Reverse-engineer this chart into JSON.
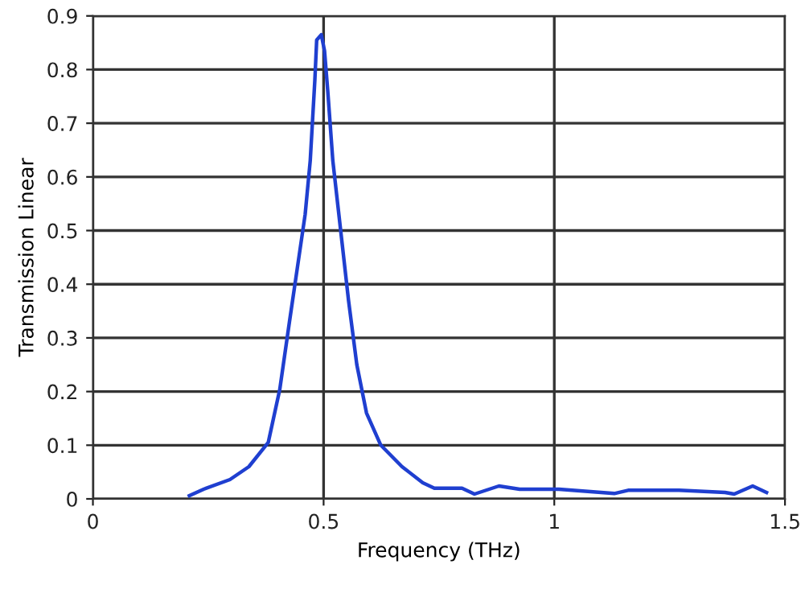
{
  "chart_data": {
    "type": "line",
    "xlabel": "Frequency (THz)",
    "ylabel": "Transmission Linear",
    "xlim": [
      0,
      1.5
    ],
    "xticks": [
      0,
      0.5,
      1,
      1.5
    ],
    "ylim": [
      0,
      0.9
    ],
    "yticks": [
      0,
      0.1,
      0.2,
      0.3,
      0.4,
      0.5,
      0.6,
      0.7,
      0.8,
      0.9
    ],
    "grid": true,
    "line_style": "solid",
    "marker": "none",
    "series": [
      {
        "color": "#1f3fd0",
        "x": [
          0.209,
          0.24,
          0.297,
          0.338,
          0.38,
          0.405,
          0.426,
          0.443,
          0.46,
          0.471,
          0.481,
          0.485,
          0.495,
          0.502,
          0.509,
          0.52,
          0.537,
          0.554,
          0.572,
          0.593,
          0.624,
          0.67,
          0.715,
          0.74,
          0.8,
          0.827,
          0.88,
          0.925,
          1.01,
          1.13,
          1.16,
          1.27,
          1.37,
          1.39,
          1.43,
          1.46
        ],
        "values": [
          0.006,
          0.018,
          0.036,
          0.06,
          0.105,
          0.204,
          0.33,
          0.43,
          0.53,
          0.63,
          0.78,
          0.855,
          0.865,
          0.835,
          0.76,
          0.63,
          0.5,
          0.37,
          0.25,
          0.16,
          0.1,
          0.06,
          0.03,
          0.02,
          0.02,
          0.009,
          0.024,
          0.018,
          0.018,
          0.01,
          0.016,
          0.016,
          0.012,
          0.009,
          0.024,
          0.012
        ]
      }
    ]
  }
}
